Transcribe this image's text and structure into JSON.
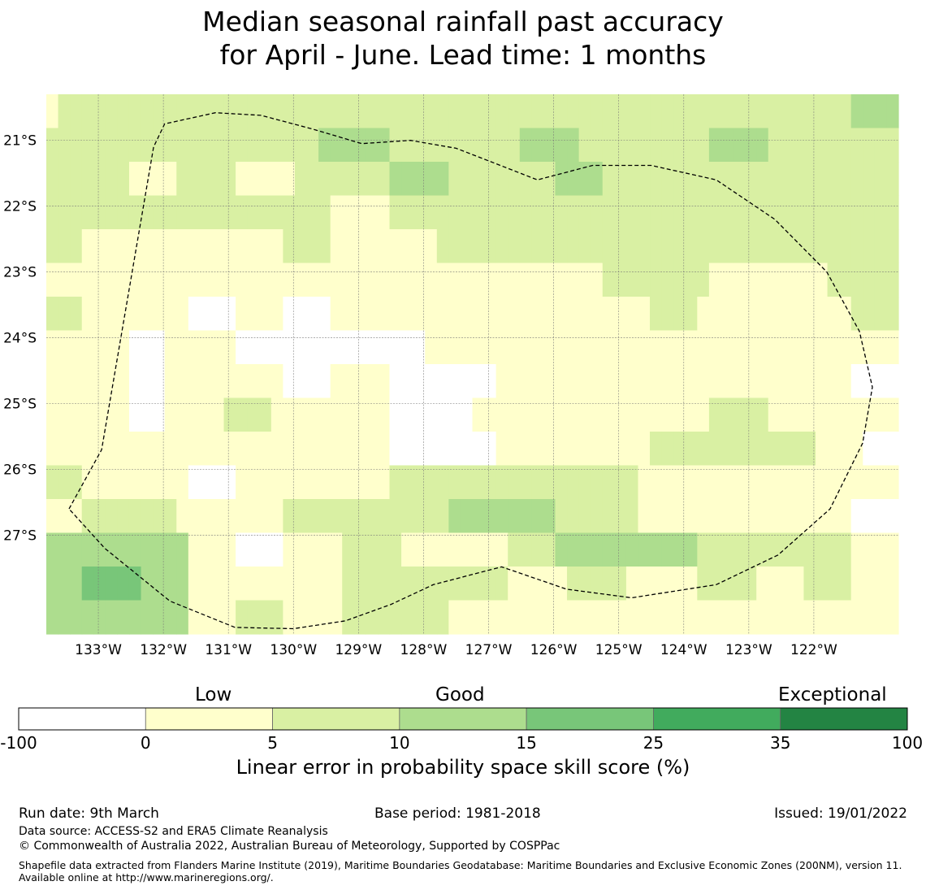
{
  "title": {
    "line1": "Median seasonal rainfall past accuracy",
    "line2": "for April - June. Lead time: 1 months"
  },
  "map": {
    "lon_range": [
      -133.8,
      -120.7
    ],
    "lat_range": [
      -28.5,
      -20.3
    ],
    "grid_cell_deg": 0.833,
    "x_ticks": [
      {
        "lon": -133,
        "label": "133°W"
      },
      {
        "lon": -132,
        "label": "132°W"
      },
      {
        "lon": -131,
        "label": "131°W"
      },
      {
        "lon": -130,
        "label": "130°W"
      },
      {
        "lon": -129,
        "label": "129°W"
      },
      {
        "lon": -128,
        "label": "128°W"
      },
      {
        "lon": -127,
        "label": "127°W"
      },
      {
        "lon": -126,
        "label": "126°W"
      },
      {
        "lon": -125,
        "label": "125°W"
      },
      {
        "lon": -124,
        "label": "124°W"
      },
      {
        "lon": -123,
        "label": "123°W"
      },
      {
        "lon": -122,
        "label": "122°W"
      }
    ],
    "y_ticks": [
      {
        "lat": -21,
        "label": "21°S"
      },
      {
        "lat": -22,
        "label": "22°S"
      },
      {
        "lat": -23,
        "label": "23°S"
      },
      {
        "lat": -24,
        "label": "24°S"
      },
      {
        "lat": -25,
        "label": "25°S"
      },
      {
        "lat": -26,
        "label": "26°S"
      },
      {
        "lat": -27,
        "label": "27°S"
      }
    ],
    "category_colors": [
      "#ffffff",
      "#ffffcc",
      "#d9f0a3",
      "#addd8e",
      "#78c679",
      "#41ab5d",
      "#238443"
    ],
    "skill_grid_note": "category index per cell: 0 = -100..0, 1 = 0..5, 2 = 5..10, 3 = 10..15, 4 = 15..25",
    "skill_grid": [
      [
        1,
        2,
        2,
        2,
        2,
        2,
        2,
        2,
        2,
        2,
        2,
        2,
        2,
        2,
        2,
        2,
        2,
        2,
        2,
        2,
        2,
        2,
        2,
        2,
        2,
        2,
        2,
        2,
        2,
        2,
        2,
        2,
        2,
        2,
        2,
        2,
        2,
        2,
        2,
        2,
        2,
        2,
        2,
        2,
        2,
        2,
        2,
        2,
        2,
        2,
        2,
        2,
        2,
        2,
        2,
        2,
        2,
        2,
        2,
        2,
        2,
        2,
        2,
        2,
        2,
        2,
        2,
        2,
        3,
        3,
        3,
        3
      ],
      [
        2,
        2,
        2,
        2,
        2,
        2,
        2,
        2,
        2,
        2,
        2,
        2,
        2,
        2,
        2,
        2,
        2,
        2,
        2,
        2,
        2,
        2,
        2,
        3,
        3,
        3,
        3,
        3,
        3,
        2,
        2,
        2,
        2,
        2,
        2,
        2,
        2,
        2,
        2,
        2,
        3,
        3,
        3,
        3,
        3,
        2,
        2,
        2,
        2,
        2,
        2,
        2,
        2,
        2,
        2,
        2,
        3,
        3,
        3,
        3,
        3,
        2,
        2,
        2,
        2,
        2,
        2,
        2,
        2,
        2,
        2,
        2
      ],
      [
        2,
        2,
        2,
        2,
        2,
        2,
        2,
        1,
        1,
        1,
        1,
        2,
        2,
        2,
        2,
        2,
        1,
        1,
        1,
        1,
        1,
        2,
        2,
        2,
        2,
        2,
        2,
        2,
        2,
        3,
        3,
        3,
        3,
        3,
        2,
        2,
        2,
        2,
        2,
        2,
        2,
        2,
        2,
        3,
        3,
        3,
        3,
        2,
        2,
        2,
        2,
        2,
        2,
        2,
        2,
        2,
        2,
        2,
        2,
        2,
        2,
        2,
        2,
        2,
        2,
        2,
        2,
        2,
        2,
        2,
        2,
        2
      ],
      [
        2,
        2,
        2,
        2,
        2,
        2,
        2,
        2,
        2,
        2,
        2,
        2,
        2,
        2,
        2,
        2,
        2,
        2,
        2,
        2,
        2,
        2,
        2,
        2,
        1,
        1,
        1,
        1,
        1,
        2,
        2,
        2,
        2,
        2,
        2,
        2,
        2,
        2,
        2,
        2,
        2,
        2,
        2,
        2,
        2,
        2,
        2,
        2,
        2,
        2,
        2,
        2,
        2,
        2,
        2,
        2,
        2,
        2,
        2,
        2,
        2,
        2,
        2,
        2,
        2,
        2,
        2,
        2,
        2,
        2,
        2,
        2
      ],
      [
        2,
        2,
        2,
        1,
        1,
        1,
        1,
        1,
        1,
        1,
        1,
        1,
        1,
        1,
        1,
        1,
        1,
        1,
        1,
        1,
        2,
        2,
        2,
        2,
        1,
        1,
        1,
        1,
        1,
        1,
        1,
        1,
        1,
        2,
        2,
        2,
        2,
        2,
        2,
        2,
        2,
        2,
        2,
        2,
        2,
        2,
        2,
        2,
        2,
        2,
        2,
        2,
        2,
        2,
        2,
        2,
        2,
        2,
        2,
        2,
        2,
        2,
        2,
        2,
        2,
        2,
        2,
        2,
        2,
        2,
        2,
        2
      ],
      [
        1,
        1,
        1,
        1,
        1,
        1,
        1,
        1,
        1,
        1,
        1,
        1,
        1,
        1,
        1,
        1,
        1,
        1,
        1,
        1,
        1,
        1,
        1,
        1,
        1,
        1,
        1,
        1,
        1,
        1,
        1,
        1,
        1,
        1,
        1,
        1,
        1,
        1,
        1,
        1,
        1,
        1,
        1,
        1,
        1,
        1,
        1,
        2,
        2,
        2,
        2,
        2,
        2,
        2,
        2,
        2,
        1,
        1,
        1,
        1,
        1,
        1,
        1,
        1,
        1,
        1,
        2,
        2,
        2,
        2,
        2,
        2
      ],
      [
        2,
        2,
        2,
        1,
        1,
        1,
        1,
        1,
        1,
        1,
        1,
        1,
        0,
        0,
        0,
        0,
        1,
        1,
        1,
        1,
        0,
        0,
        0,
        0,
        1,
        1,
        1,
        1,
        1,
        1,
        1,
        1,
        1,
        1,
        1,
        1,
        1,
        1,
        1,
        1,
        1,
        1,
        1,
        1,
        1,
        1,
        1,
        1,
        1,
        1,
        1,
        2,
        2,
        2,
        2,
        1,
        1,
        1,
        1,
        1,
        1,
        1,
        1,
        1,
        1,
        1,
        1,
        1,
        2,
        2,
        2,
        2
      ],
      [
        1,
        1,
        1,
        1,
        1,
        1,
        1,
        0,
        0,
        0,
        1,
        1,
        1,
        1,
        1,
        1,
        0,
        0,
        0,
        0,
        0,
        0,
        0,
        0,
        0,
        0,
        0,
        0,
        0,
        0,
        0,
        0,
        1,
        1,
        1,
        1,
        1,
        1,
        1,
        1,
        1,
        1,
        1,
        1,
        1,
        1,
        1,
        1,
        1,
        1,
        1,
        1,
        1,
        1,
        1,
        1,
        1,
        1,
        1,
        1,
        1,
        1,
        1,
        1,
        1,
        1,
        1,
        1,
        1,
        1,
        1,
        1
      ],
      [
        1,
        1,
        1,
        1,
        1,
        1,
        1,
        0,
        0,
        0,
        1,
        1,
        1,
        1,
        1,
        1,
        1,
        1,
        1,
        1,
        0,
        0,
        0,
        0,
        1,
        1,
        1,
        1,
        1,
        0,
        0,
        0,
        0,
        0,
        0,
        0,
        0,
        0,
        1,
        1,
        1,
        1,
        1,
        1,
        1,
        1,
        1,
        1,
        1,
        1,
        1,
        1,
        1,
        1,
        1,
        1,
        1,
        1,
        1,
        1,
        1,
        1,
        1,
        1,
        1,
        1,
        1,
        1,
        0,
        0,
        0,
        0
      ],
      [
        1,
        1,
        1,
        1,
        1,
        1,
        1,
        0,
        0,
        0,
        1,
        1,
        1,
        1,
        1,
        2,
        2,
        2,
        2,
        1,
        1,
        1,
        1,
        1,
        1,
        1,
        1,
        1,
        1,
        0,
        0,
        0,
        0,
        0,
        0,
        0,
        1,
        1,
        1,
        1,
        1,
        1,
        1,
        1,
        1,
        1,
        1,
        1,
        1,
        1,
        1,
        1,
        1,
        1,
        1,
        1,
        2,
        2,
        2,
        2,
        2,
        1,
        1,
        1,
        1,
        1,
        1,
        1,
        1,
        1,
        1,
        1
      ],
      [
        1,
        1,
        1,
        1,
        1,
        1,
        1,
        1,
        1,
        1,
        1,
        1,
        1,
        1,
        1,
        1,
        1,
        1,
        1,
        1,
        1,
        1,
        1,
        1,
        1,
        1,
        1,
        1,
        1,
        0,
        0,
        0,
        0,
        0,
        0,
        0,
        0,
        0,
        1,
        1,
        1,
        1,
        1,
        1,
        1,
        1,
        1,
        1,
        1,
        1,
        1,
        2,
        2,
        2,
        2,
        2,
        2,
        2,
        2,
        2,
        2,
        2,
        2,
        2,
        2,
        1,
        1,
        1,
        1,
        0,
        0,
        0
      ],
      [
        2,
        2,
        2,
        1,
        1,
        1,
        1,
        1,
        1,
        1,
        1,
        1,
        0,
        0,
        0,
        0,
        1,
        1,
        1,
        1,
        1,
        1,
        1,
        1,
        1,
        1,
        1,
        1,
        1,
        2,
        2,
        2,
        2,
        2,
        2,
        2,
        2,
        2,
        2,
        2,
        2,
        2,
        2,
        2,
        2,
        2,
        2,
        2,
        2,
        2,
        1,
        1,
        1,
        1,
        1,
        1,
        1,
        1,
        1,
        1,
        1,
        1,
        1,
        1,
        1,
        1,
        1,
        1,
        1,
        1,
        1,
        1
      ],
      [
        1,
        1,
        1,
        2,
        2,
        2,
        2,
        2,
        2,
        2,
        2,
        1,
        1,
        1,
        1,
        1,
        1,
        1,
        1,
        1,
        2,
        2,
        2,
        2,
        2,
        2,
        2,
        2,
        2,
        2,
        2,
        2,
        2,
        2,
        3,
        3,
        3,
        3,
        3,
        3,
        3,
        3,
        3,
        2,
        2,
        2,
        2,
        2,
        2,
        2,
        1,
        1,
        1,
        1,
        1,
        1,
        1,
        1,
        1,
        1,
        1,
        1,
        1,
        1,
        1,
        1,
        1,
        1,
        0,
        0,
        0,
        0
      ],
      [
        3,
        3,
        3,
        3,
        3,
        3,
        3,
        3,
        3,
        3,
        3,
        3,
        1,
        1,
        1,
        1,
        0,
        0,
        0,
        0,
        1,
        1,
        1,
        1,
        1,
        2,
        2,
        2,
        2,
        2,
        1,
        1,
        1,
        1,
        1,
        1,
        1,
        1,
        1,
        2,
        2,
        2,
        2,
        3,
        3,
        3,
        3,
        3,
        3,
        3,
        3,
        3,
        3,
        3,
        3,
        2,
        2,
        2,
        2,
        2,
        2,
        2,
        2,
        2,
        2,
        2,
        2,
        2,
        1,
        1,
        1,
        1
      ],
      [
        3,
        3,
        3,
        4,
        4,
        4,
        4,
        4,
        3,
        3,
        3,
        3,
        1,
        1,
        1,
        1,
        1,
        1,
        1,
        1,
        1,
        1,
        1,
        1,
        1,
        2,
        2,
        2,
        2,
        2,
        2,
        2,
        2,
        2,
        2,
        2,
        2,
        2,
        2,
        1,
        1,
        1,
        1,
        1,
        2,
        2,
        2,
        2,
        2,
        1,
        1,
        1,
        1,
        1,
        1,
        2,
        2,
        2,
        2,
        2,
        1,
        1,
        1,
        1,
        2,
        2,
        2,
        2,
        1,
        1,
        1,
        1
      ],
      [
        3,
        3,
        3,
        3,
        3,
        3,
        3,
        3,
        3,
        3,
        3,
        3,
        1,
        1,
        1,
        1,
        2,
        2,
        2,
        2,
        1,
        1,
        1,
        1,
        1,
        2,
        2,
        2,
        2,
        2,
        2,
        2,
        2,
        2,
        1,
        1,
        1,
        1,
        1,
        1,
        1,
        1,
        1,
        1,
        1,
        1,
        1,
        1,
        1,
        1,
        1,
        1,
        1,
        1,
        1,
        1,
        1,
        1,
        1,
        1,
        1,
        1,
        1,
        1,
        1,
        1,
        1,
        1,
        1,
        1,
        1,
        1
      ]
    ],
    "eez_boundary": [
      [
        -133.45,
        -26.6
      ],
      [
        -132.95,
        -25.7
      ],
      [
        -132.15,
        -21.1
      ],
      [
        -131.98,
        -20.75
      ],
      [
        -131.2,
        -20.58
      ],
      [
        -130.5,
        -20.62
      ],
      [
        -129.7,
        -20.83
      ],
      [
        -128.95,
        -21.05
      ],
      [
        -128.2,
        -21.0
      ],
      [
        -127.5,
        -21.12
      ],
      [
        -126.9,
        -21.35
      ],
      [
        -126.25,
        -21.6
      ],
      [
        -125.4,
        -21.38
      ],
      [
        -124.5,
        -21.38
      ],
      [
        -123.5,
        -21.6
      ],
      [
        -122.6,
        -22.2
      ],
      [
        -121.8,
        -23.0
      ],
      [
        -121.3,
        -23.9
      ],
      [
        -121.1,
        -24.75
      ],
      [
        -121.25,
        -25.6
      ],
      [
        -121.75,
        -26.6
      ],
      [
        -122.55,
        -27.3
      ],
      [
        -123.5,
        -27.75
      ],
      [
        -124.8,
        -27.95
      ],
      [
        -125.8,
        -27.82
      ],
      [
        -126.8,
        -27.48
      ],
      [
        -127.85,
        -27.75
      ],
      [
        -128.5,
        -28.05
      ],
      [
        -129.2,
        -28.3
      ],
      [
        -130.0,
        -28.42
      ],
      [
        -130.9,
        -28.4
      ],
      [
        -131.9,
        -28.0
      ],
      [
        -132.9,
        -27.2
      ],
      [
        -133.45,
        -26.6
      ]
    ]
  },
  "colorbar": {
    "category_labels": [
      "Low",
      "Good",
      "Exceptional"
    ],
    "ticks": [
      "-100",
      "0",
      "5",
      "10",
      "15",
      "25",
      "35",
      "100"
    ],
    "colors": [
      "#ffffff",
      "#ffffcc",
      "#d9f0a3",
      "#addd8e",
      "#78c679",
      "#41ab5d",
      "#238443"
    ],
    "title": "Linear error in probability space skill score (%)"
  },
  "footer": {
    "run_date": "Run date: 9th March",
    "base_period": "Base period: 1981-2018",
    "issued": "Issued: 19/01/2022",
    "data_source": "Data source: ACCESS-S2 and ERA5 Climate Reanalysis",
    "copyright": "© Commonwealth of Australia 2022, Australian Bureau of Meteorology, Supported by COSPPac",
    "shapefile": "Shapefile data extracted from Flanders Marine Institute (2019), Maritime Boundaries Geodatabase: Maritime Boundaries and Exclusive Economic Zones (200NM), version 11. Available online at http://www.marineregions.org/."
  }
}
